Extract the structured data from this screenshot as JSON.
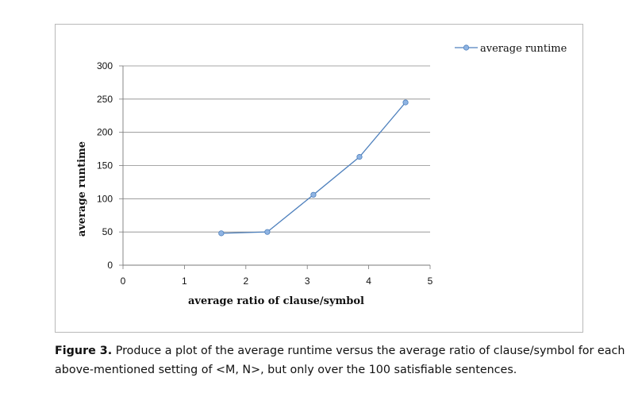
{
  "chart_data": {
    "type": "line",
    "xlabel": "average ratio of clause/symbol",
    "ylabel": "average runtime",
    "xlim": [
      0,
      5
    ],
    "ylim": [
      0,
      300
    ],
    "x_ticks": [
      "0",
      "1",
      "2",
      "3",
      "4",
      "5"
    ],
    "y_ticks": [
      "0",
      "50",
      "100",
      "150",
      "200",
      "250",
      "300"
    ],
    "grid": "horizontal",
    "legend_position": "top-right",
    "series": [
      {
        "name": "average runtime",
        "color": "#4f81bd",
        "marker_color": "#8fb4e3",
        "x": [
          1.6,
          2.35,
          3.1,
          3.85,
          4.6
        ],
        "y": [
          48,
          50,
          106,
          163,
          245
        ]
      }
    ]
  },
  "caption": {
    "label": "Figure 3.",
    "text": " Produce a plot of the average runtime versus the average ratio of clause/symbol for each above-mentioned setting of <M, N>, but only over the 100 satisfiable sentences."
  }
}
